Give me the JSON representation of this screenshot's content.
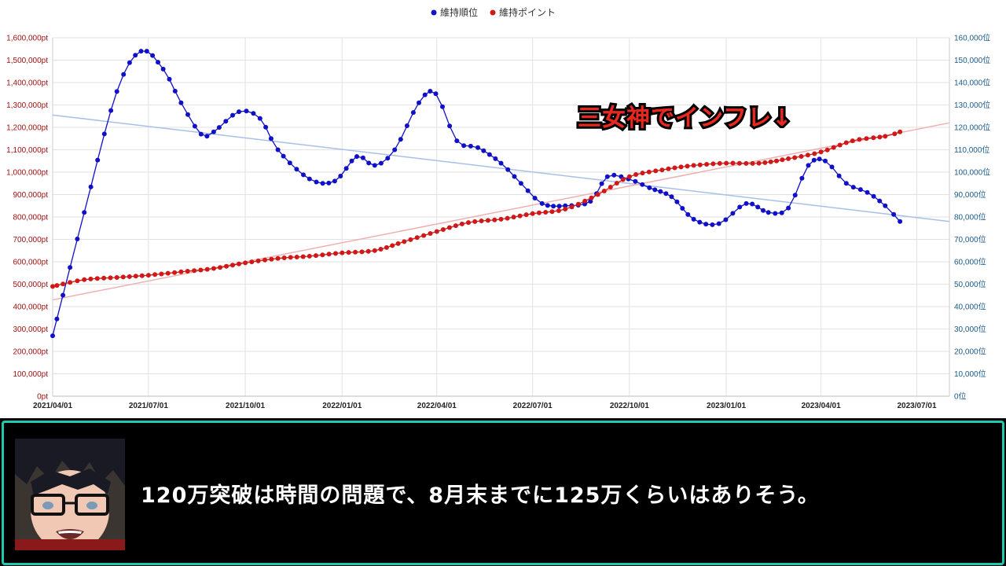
{
  "chart_data": {
    "type": "line",
    "legend": {
      "placement": "top-center",
      "items": [
        "維持順位",
        "維持ポイント"
      ]
    },
    "x_ticks": [
      "2021/04/01",
      "2021/07/01",
      "2021/10/01",
      "2022/01/01",
      "2022/04/01",
      "2022/07/01",
      "2022/10/01",
      "2023/01/01",
      "2023/04/01",
      "2023/07/01"
    ],
    "x_range": [
      "2021/04/01",
      "2023/08/01"
    ],
    "y_left_ticks": [
      "0pt",
      "100,000pt",
      "200,000pt",
      "300,000pt",
      "400,000pt",
      "500,000pt",
      "600,000pt",
      "700,000pt",
      "800,000pt",
      "900,000pt",
      "1,000,000pt",
      "1,100,000pt",
      "1,200,000pt",
      "1,300,000pt",
      "1,400,000pt",
      "1,500,000pt",
      "1,600,000pt"
    ],
    "y_right_ticks": [
      "0位",
      "10,000位",
      "20,000位",
      "30,000位",
      "40,000位",
      "50,000位",
      "60,000位",
      "70,000位",
      "80,000位",
      "90,000位",
      "100,000位",
      "110,000位",
      "120,000位",
      "130,000位",
      "140,000位",
      "150,000位",
      "160,000位"
    ],
    "ylim_left": [
      0,
      1600000
    ],
    "ylim_right": [
      0,
      160000
    ],
    "grid": true,
    "series": [
      {
        "name": "維持順位",
        "axis": "right",
        "color": "#1010c8",
        "x": [
          "2021/04/01",
          "2021/05/01",
          "2021/06/01",
          "2021/06/24",
          "2021/07/15",
          "2021/08/01",
          "2021/08/20",
          "2021/09/01",
          "2021/09/25",
          "2021/10/15",
          "2021/11/01",
          "2021/12/01",
          "2021/12/25",
          "2022/01/15",
          "2022/02/01",
          "2022/02/20",
          "2022/03/15",
          "2022/03/31",
          "2022/04/20",
          "2022/05/10",
          "2022/06/01",
          "2022/06/20",
          "2022/07/10",
          "2022/08/01",
          "2022/08/25",
          "2022/09/10",
          "2022/09/30",
          "2022/10/20",
          "2022/11/10",
          "2022/12/01",
          "2022/12/25",
          "2023/01/20",
          "2023/02/10",
          "2023/03/01",
          "2023/03/20",
          "2023/04/05",
          "2023/04/25",
          "2023/05/15",
          "2023/06/01",
          "2023/06/15"
        ],
        "values": [
          27000,
          82000,
          136000,
          154000,
          146000,
          131000,
          117000,
          118000,
          127000,
          124000,
          110000,
          97000,
          96000,
          107000,
          103000,
          110000,
          131000,
          135000,
          114000,
          111000,
          104000,
          95000,
          86000,
          85000,
          87000,
          98000,
          97000,
          93000,
          89000,
          79000,
          77000,
          86000,
          82000,
          84000,
          103000,
          105000,
          95000,
          91000,
          85000,
          78000
        ]
      },
      {
        "name": "維持ポイント",
        "axis": "left",
        "color": "#d01818",
        "x": [
          "2021/04/01",
          "2021/05/01",
          "2021/06/01",
          "2021/07/01",
          "2021/08/01",
          "2021/09/01",
          "2021/10/01",
          "2021/11/01",
          "2021/12/01",
          "2022/01/01",
          "2022/02/01",
          "2022/03/01",
          "2022/04/01",
          "2022/05/01",
          "2022/06/01",
          "2022/07/01",
          "2022/08/01",
          "2022/09/01",
          "2022/10/01",
          "2022/11/01",
          "2022/12/01",
          "2023/01/01",
          "2023/02/01",
          "2023/03/01",
          "2023/04/01",
          "2023/05/01",
          "2023/06/01",
          "2023/06/15"
        ],
        "values": [
          490000,
          520000,
          530000,
          540000,
          555000,
          570000,
          595000,
          615000,
          625000,
          640000,
          650000,
          690000,
          735000,
          775000,
          790000,
          815000,
          835000,
          900000,
          980000,
          1010000,
          1030000,
          1040000,
          1040000,
          1060000,
          1090000,
          1140000,
          1160000,
          1180000
        ]
      }
    ],
    "trendlines": [
      {
        "series": "維持順位",
        "color": "#a8c0e8",
        "axis": "right",
        "x": [
          "2021/04/01",
          "2023/08/01"
        ],
        "values": [
          125500,
          78000
        ]
      },
      {
        "series": "維持ポイント",
        "color": "#f0b0b0",
        "axis": "left",
        "x": [
          "2021/04/01",
          "2023/08/01"
        ],
        "values": [
          430000,
          1220000
        ]
      }
    ],
    "annotation": "三女神でインフレ↓"
  },
  "subtitle": {
    "text": "120万突破は時間の問題で、8月末までに125万くらいはありそう。",
    "border_color": "#20c8b0"
  }
}
